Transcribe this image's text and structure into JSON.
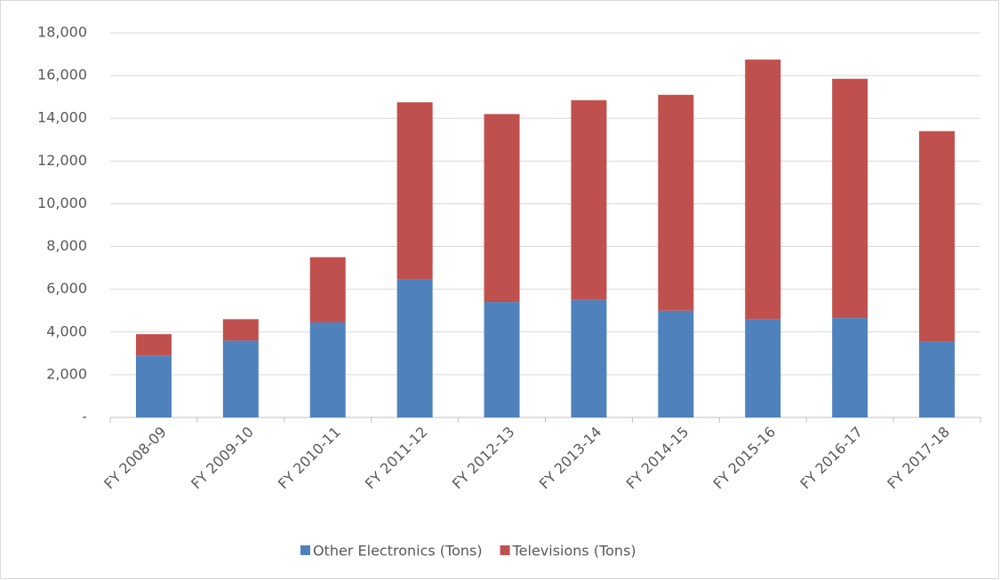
{
  "chart_data": {
    "type": "stacked_bar",
    "categories": [
      "FY 2008-09",
      "FY 2009-10",
      "FY 2010-11",
      "FY 2011-12",
      "FY 2012-13",
      "FY 2013-14",
      "FY 2014-15",
      "FY 2015-16",
      "FY 2016-17",
      "FY 2017-18"
    ],
    "series": [
      {
        "name": "Other Electronics (Tons)",
        "color": "#4f81bd",
        "values": [
          2900,
          3600,
          4450,
          6450,
          5400,
          5500,
          5000,
          4600,
          4650,
          3550
        ]
      },
      {
        "name": "Televisions (Tons)",
        "color": "#c0504d",
        "values": [
          1000,
          1000,
          3050,
          8300,
          8800,
          9350,
          10100,
          12150,
          11200,
          9850
        ]
      }
    ],
    "ylim": [
      0,
      18000
    ],
    "yticks": [
      {
        "value": 0,
        "label": "-"
      },
      {
        "value": 2000,
        "label": "2,000"
      },
      {
        "value": 4000,
        "label": "4,000"
      },
      {
        "value": 6000,
        "label": "6,000"
      },
      {
        "value": 8000,
        "label": "8,000"
      },
      {
        "value": 10000,
        "label": "10,000"
      },
      {
        "value": 12000,
        "label": "12,000"
      },
      {
        "value": 14000,
        "label": "14,000"
      },
      {
        "value": 16000,
        "label": "16,000"
      },
      {
        "value": 18000,
        "label": "18,000"
      }
    ],
    "grid": true,
    "legend": "bottom"
  }
}
